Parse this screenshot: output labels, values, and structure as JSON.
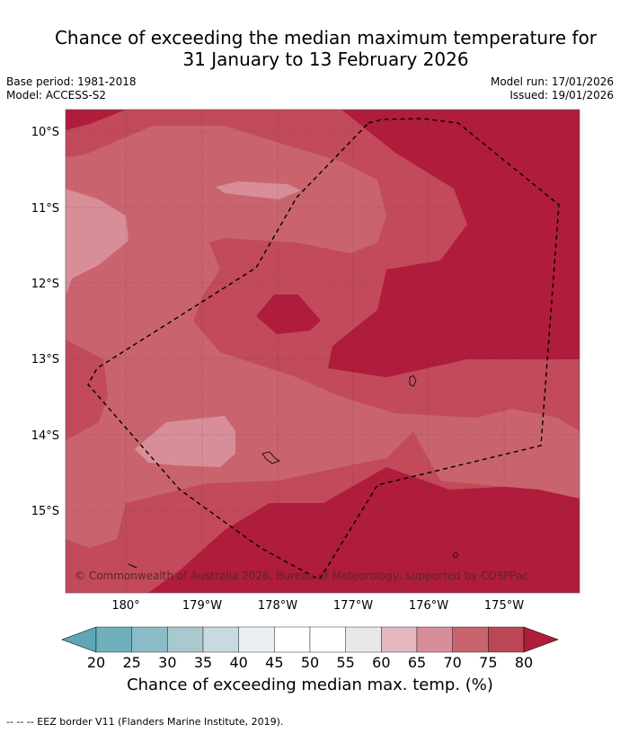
{
  "title": {
    "line1": "Chance of exceeding the median maximum temperature for",
    "line2": "31 January to 13 February 2026"
  },
  "meta": {
    "base_period": "Base period: 1981-2018",
    "model": "Model: ACCESS-S2",
    "model_run": "Model run: 17/01/2026",
    "issued": "Issued: 19/01/2026"
  },
  "map": {
    "lat_labels": [
      "10°S",
      "11°S",
      "12°S",
      "13°S",
      "14°S",
      "15°S"
    ],
    "lon_labels": [
      "180°",
      "179°W",
      "178°W",
      "177°W",
      "176°W",
      "175°W"
    ],
    "copyright": "© Commonwealth of Australia 2026, Bureau of Meteorology, supported by COSPPac"
  },
  "legend": {
    "ticks": [
      "20",
      "25",
      "30",
      "35",
      "40",
      "45",
      "50",
      "55",
      "60",
      "65",
      "70",
      "75",
      "80"
    ],
    "colors": [
      "#5ea7b5",
      "#6fb0bd",
      "#8bbcc7",
      "#a9c9cf",
      "#c9dadf",
      "#e9eff2",
      "#ffffff",
      "#ffffff",
      "#e8e8e8",
      "#e4b8bf",
      "#d88e98",
      "#c9646f",
      "#bb4756",
      "#b01c3b"
    ],
    "title": "Chance of exceeding median max. temp. (%)"
  },
  "footer": "--  --  -- EEZ border V11 (Flanders Marine Institute, 2019)."
}
